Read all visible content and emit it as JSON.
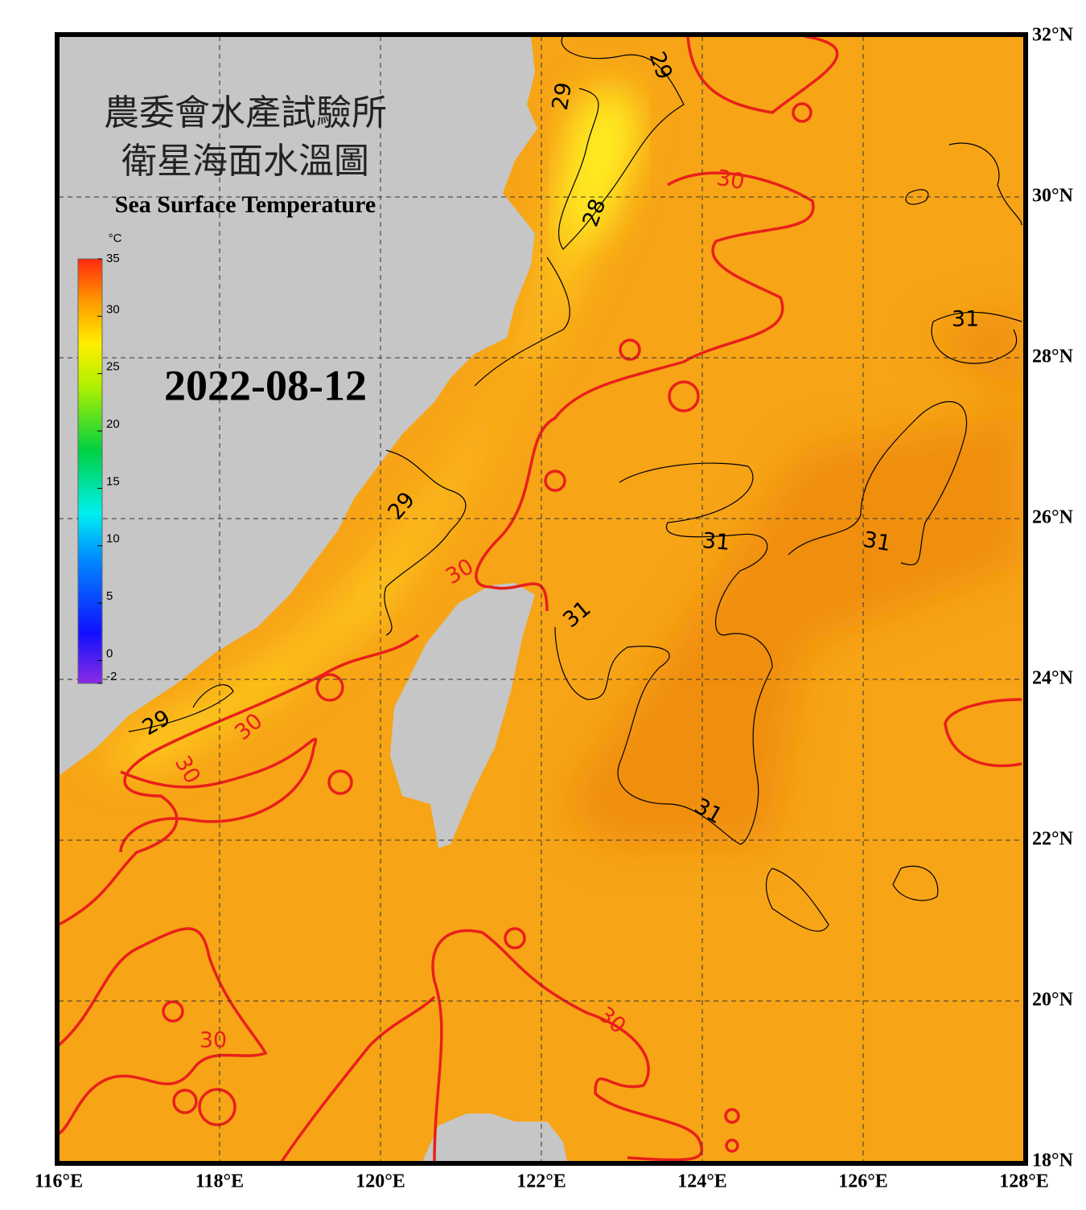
{
  "header": {
    "title_zh": "農委會水產試驗所",
    "subtitle_zh": "衛星海面水溫圖",
    "title_en": "Sea Surface Temperature",
    "date": "2022-08-12"
  },
  "colorbar": {
    "unit": "°C",
    "range": [
      -2,
      35
    ],
    "ticks": [
      35,
      30,
      25,
      20,
      15,
      10,
      5,
      0,
      -2
    ]
  },
  "map": {
    "lonlim": [
      116,
      128
    ],
    "latlim": [
      18,
      32
    ],
    "lon_ticks": [
      {
        "value": 116,
        "label": "116°E"
      },
      {
        "value": 118,
        "label": "118°E"
      },
      {
        "value": 120,
        "label": "120°E"
      },
      {
        "value": 122,
        "label": "122°E"
      },
      {
        "value": 124,
        "label": "124°E"
      },
      {
        "value": 126,
        "label": "126°E"
      },
      {
        "value": 128,
        "label": "128°E"
      }
    ],
    "lat_ticks": [
      {
        "value": 18,
        "label": "18°N"
      },
      {
        "value": 20,
        "label": "20°N"
      },
      {
        "value": 22,
        "label": "22°N"
      },
      {
        "value": 24,
        "label": "24°N"
      },
      {
        "value": 26,
        "label": "26°N"
      },
      {
        "value": 28,
        "label": "28°N"
      },
      {
        "value": 30,
        "label": "30°N"
      },
      {
        "value": 32,
        "label": "32°N"
      }
    ],
    "contour_labels": [
      29,
      29,
      28,
      30,
      31,
      31,
      31,
      29,
      30,
      31,
      29,
      30,
      30,
      31,
      30,
      30
    ]
  }
}
